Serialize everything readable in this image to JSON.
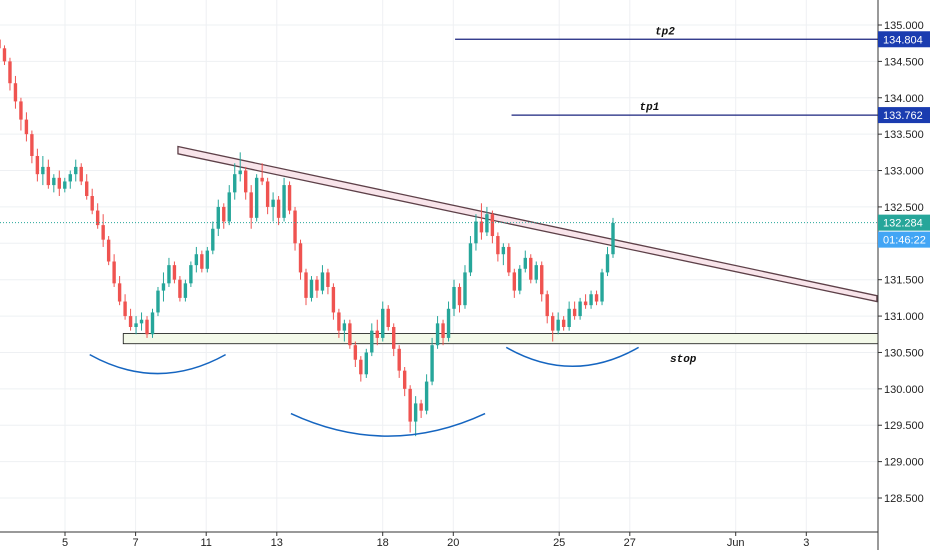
{
  "chart_data": {
    "type": "candlestick",
    "ylim": [
      128.0,
      135.3
    ],
    "y_ticks": [
      128.5,
      129.0,
      129.5,
      130.0,
      130.5,
      131.0,
      131.5,
      132.0,
      132.5,
      133.0,
      133.5,
      134.0,
      134.5,
      135.0
    ],
    "x_ticks": [
      {
        "label": "5",
        "pos": 5
      },
      {
        "label": "7",
        "pos": 7
      },
      {
        "label": "11",
        "pos": 9
      },
      {
        "label": "13",
        "pos": 11
      },
      {
        "label": "18",
        "pos": 14
      },
      {
        "label": "20",
        "pos": 16
      },
      {
        "label": "25",
        "pos": 19
      },
      {
        "label": "27",
        "pos": 21
      },
      {
        "label": "Jun",
        "pos": 24
      },
      {
        "label": "3",
        "pos": 26
      }
    ],
    "xlim": [
      3.2,
      28.0
    ],
    "colors": {
      "up": "#26a69a",
      "down": "#ef5350",
      "level": "#1a237e",
      "tag": "#1a3cb0",
      "clock": "#42a5f5",
      "current": "#26a69a",
      "curve": "#1565c0",
      "channel_fill": "#f8e4ea",
      "channel_edge": "#5d4048",
      "zone_fill": "#f3f9e9",
      "zone_edge": "#111111",
      "grid": "#eef0f3"
    },
    "levels": [
      {
        "label": "tp2",
        "price": 134.804,
        "tag": "134.804",
        "x_start": 16.05
      },
      {
        "label": "tp1",
        "price": 133.762,
        "tag": "133.762",
        "x_start": 17.65
      }
    ],
    "current_price": {
      "price": 132.284,
      "tag": "132.284",
      "countdown": "01:46:22"
    },
    "stop_label": "stop",
    "stop_zone": {
      "x_start": 6.65,
      "top": 130.76,
      "bottom": 130.62
    },
    "channel": {
      "x0": 8.2,
      "top0": 133.33,
      "bottom0": 133.23,
      "x1": 28.0,
      "top1": 131.28,
      "bottom1": 131.2
    },
    "curves": [
      {
        "x0": 5.7,
        "x1": 9.55,
        "y_ends": 130.47,
        "y_min": 130.21
      },
      {
        "x0": 11.4,
        "x1": 16.9,
        "y_ends": 129.66,
        "y_min": 129.35
      },
      {
        "x0": 17.5,
        "x1": 21.25,
        "y_ends": 130.57,
        "y_min": 130.31
      }
    ],
    "ohlc": [
      [
        134.8,
        134.85,
        134.6,
        134.68
      ],
      [
        134.68,
        134.72,
        134.45,
        134.5
      ],
      [
        134.5,
        134.55,
        134.1,
        134.2
      ],
      [
        134.2,
        134.3,
        133.85,
        133.95
      ],
      [
        133.95,
        134.0,
        133.55,
        133.7
      ],
      [
        133.7,
        133.8,
        133.4,
        133.5
      ],
      [
        133.5,
        133.55,
        133.1,
        133.2
      ],
      [
        133.2,
        133.3,
        132.85,
        132.95
      ],
      [
        132.95,
        133.2,
        132.8,
        133.05
      ],
      [
        133.05,
        133.15,
        132.75,
        132.8
      ],
      [
        132.8,
        132.95,
        132.7,
        132.9
      ],
      [
        132.9,
        133.0,
        132.65,
        132.75
      ],
      [
        132.75,
        132.9,
        132.7,
        132.85
      ],
      [
        132.85,
        133.0,
        132.75,
        132.95
      ],
      [
        132.95,
        133.15,
        132.85,
        133.05
      ],
      [
        133.05,
        133.1,
        132.8,
        132.85
      ],
      [
        132.85,
        132.95,
        132.6,
        132.65
      ],
      [
        132.65,
        132.75,
        132.4,
        132.45
      ],
      [
        132.45,
        132.55,
        132.2,
        132.25
      ],
      [
        132.25,
        132.4,
        131.95,
        132.05
      ],
      [
        132.05,
        132.1,
        131.7,
        131.75
      ],
      [
        131.75,
        131.85,
        131.4,
        131.45
      ],
      [
        131.45,
        131.55,
        131.15,
        131.2
      ],
      [
        131.2,
        131.3,
        130.95,
        131.0
      ],
      [
        131.0,
        131.1,
        130.8,
        130.85
      ],
      [
        130.85,
        131.0,
        130.75,
        130.9
      ],
      [
        130.9,
        131.05,
        130.8,
        130.95
      ],
      [
        130.95,
        131.0,
        130.7,
        130.75
      ],
      [
        130.75,
        131.1,
        130.7,
        131.05
      ],
      [
        131.05,
        131.4,
        131.0,
        131.35
      ],
      [
        131.35,
        131.6,
        131.2,
        131.45
      ],
      [
        131.45,
        131.8,
        131.4,
        131.7
      ],
      [
        131.7,
        131.75,
        131.45,
        131.5
      ],
      [
        131.5,
        131.55,
        131.2,
        131.25
      ],
      [
        131.25,
        131.5,
        131.2,
        131.45
      ],
      [
        131.45,
        131.75,
        131.4,
        131.7
      ],
      [
        131.7,
        131.95,
        131.6,
        131.85
      ],
      [
        131.85,
        131.9,
        131.6,
        131.65
      ],
      [
        131.65,
        131.95,
        131.6,
        131.9
      ],
      [
        131.9,
        132.3,
        131.85,
        132.2
      ],
      [
        132.2,
        132.6,
        132.1,
        132.5
      ],
      [
        132.5,
        132.55,
        132.2,
        132.3
      ],
      [
        132.3,
        132.8,
        132.25,
        132.7
      ],
      [
        132.7,
        133.1,
        132.6,
        132.95
      ],
      [
        132.95,
        133.25,
        132.85,
        133.0
      ],
      [
        133.0,
        133.05,
        132.6,
        132.7
      ],
      [
        132.7,
        132.8,
        132.2,
        132.35
      ],
      [
        132.35,
        132.95,
        132.3,
        132.9
      ],
      [
        132.9,
        133.1,
        132.8,
        132.85
      ],
      [
        132.85,
        132.9,
        132.4,
        132.5
      ],
      [
        132.5,
        132.7,
        132.3,
        132.6
      ],
      [
        132.6,
        132.65,
        132.25,
        132.35
      ],
      [
        132.35,
        132.9,
        132.3,
        132.8
      ],
      [
        132.8,
        132.85,
        132.4,
        132.45
      ],
      [
        132.45,
        132.5,
        131.9,
        132.0
      ],
      [
        132.0,
        132.05,
        131.5,
        131.6
      ],
      [
        131.6,
        131.65,
        131.15,
        131.25
      ],
      [
        131.25,
        131.55,
        131.2,
        131.5
      ],
      [
        131.5,
        131.55,
        131.25,
        131.35
      ],
      [
        131.35,
        131.7,
        131.3,
        131.6
      ],
      [
        131.6,
        131.65,
        131.3,
        131.4
      ],
      [
        131.4,
        131.45,
        130.95,
        131.05
      ],
      [
        131.05,
        131.1,
        130.7,
        130.8
      ],
      [
        130.8,
        130.95,
        130.65,
        130.9
      ],
      [
        130.9,
        130.95,
        130.55,
        130.6
      ],
      [
        130.6,
        130.65,
        130.3,
        130.4
      ],
      [
        130.4,
        130.45,
        130.1,
        130.2
      ],
      [
        130.2,
        130.55,
        130.15,
        130.5
      ],
      [
        130.5,
        130.9,
        130.45,
        130.8
      ],
      [
        130.8,
        130.95,
        130.6,
        130.7
      ],
      [
        130.7,
        131.2,
        130.65,
        131.1
      ],
      [
        131.1,
        131.15,
        130.8,
        130.85
      ],
      [
        130.85,
        130.9,
        130.45,
        130.55
      ],
      [
        130.55,
        130.6,
        130.15,
        130.25
      ],
      [
        130.25,
        130.3,
        129.9,
        130.0
      ],
      [
        130.0,
        130.05,
        129.4,
        129.55
      ],
      [
        129.55,
        129.9,
        129.35,
        129.8
      ],
      [
        129.8,
        129.85,
        129.6,
        129.7
      ],
      [
        129.7,
        130.2,
        129.65,
        130.1
      ],
      [
        130.1,
        130.7,
        130.05,
        130.6
      ],
      [
        130.6,
        131.0,
        130.55,
        130.9
      ],
      [
        130.9,
        130.95,
        130.6,
        130.7
      ],
      [
        130.7,
        131.2,
        130.65,
        131.1
      ],
      [
        131.1,
        131.5,
        131.0,
        131.4
      ],
      [
        131.4,
        131.45,
        131.05,
        131.15
      ],
      [
        131.15,
        131.7,
        131.1,
        131.6
      ],
      [
        131.6,
        132.1,
        131.55,
        132.0
      ],
      [
        132.0,
        132.4,
        131.9,
        132.3
      ],
      [
        132.3,
        132.55,
        132.05,
        132.15
      ],
      [
        132.15,
        132.5,
        132.1,
        132.4
      ],
      [
        132.4,
        132.45,
        132.0,
        132.1
      ],
      [
        132.1,
        132.15,
        131.75,
        131.85
      ],
      [
        131.85,
        132.0,
        131.7,
        131.95
      ],
      [
        131.95,
        132.0,
        131.55,
        131.6
      ],
      [
        131.6,
        131.65,
        131.25,
        131.35
      ],
      [
        131.35,
        131.7,
        131.3,
        131.65
      ],
      [
        131.65,
        131.9,
        131.6,
        131.8
      ],
      [
        131.8,
        131.85,
        131.45,
        131.5
      ],
      [
        131.5,
        131.75,
        131.45,
        131.7
      ],
      [
        131.7,
        131.75,
        131.2,
        131.3
      ],
      [
        131.3,
        131.35,
        130.9,
        131.0
      ],
      [
        131.0,
        131.05,
        130.65,
        130.8
      ],
      [
        130.8,
        131.05,
        130.75,
        130.95
      ],
      [
        130.95,
        131.0,
        130.8,
        130.85
      ],
      [
        130.85,
        131.2,
        130.8,
        131.1
      ],
      [
        131.1,
        131.2,
        130.95,
        131.0
      ],
      [
        131.0,
        131.25,
        130.95,
        131.2
      ],
      [
        131.2,
        131.3,
        131.1,
        131.15
      ],
      [
        131.15,
        131.35,
        131.1,
        131.3
      ],
      [
        131.3,
        131.35,
        131.15,
        131.2
      ],
      [
        131.2,
        131.65,
        131.15,
        131.6
      ],
      [
        131.6,
        131.95,
        131.55,
        131.85
      ],
      [
        131.85,
        132.35,
        131.8,
        132.28
      ]
    ]
  }
}
